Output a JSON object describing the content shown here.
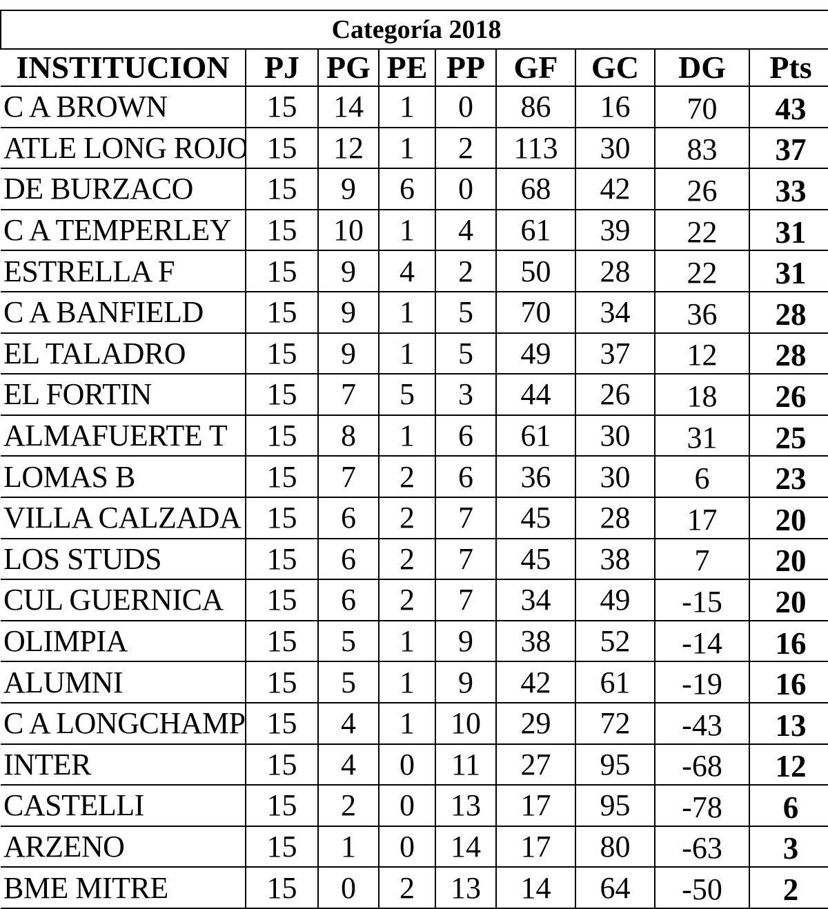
{
  "title": "Categoría  2018",
  "headers": {
    "institucion": "INSTITUCION",
    "pj": "PJ",
    "pg": "PG",
    "pe": "PE",
    "pp": "PP",
    "gf": "GF",
    "gc": "GC",
    "dg": "DG",
    "pts": "Pts"
  },
  "rows": [
    {
      "name": "C A BROWN",
      "pj": "15",
      "pg": "14",
      "pe": "1",
      "pp": "0",
      "gf": "86",
      "gc": "16",
      "dg": "70",
      "pts": "43"
    },
    {
      "name": "ATLE LONG ROJO",
      "pj": "15",
      "pg": "12",
      "pe": "1",
      "pp": "2",
      "gf": "113",
      "gc": "30",
      "dg": "83",
      "pts": "37"
    },
    {
      "name": "DE BURZACO",
      "pj": "15",
      "pg": "9",
      "pe": "6",
      "pp": "0",
      "gf": "68",
      "gc": "42",
      "dg": "26",
      "pts": "33"
    },
    {
      "name": "C A TEMPERLEY",
      "pj": "15",
      "pg": "10",
      "pe": "1",
      "pp": "4",
      "gf": "61",
      "gc": "39",
      "dg": "22",
      "pts": "31"
    },
    {
      "name": "ESTRELLA F",
      "pj": "15",
      "pg": "9",
      "pe": "4",
      "pp": "2",
      "gf": "50",
      "gc": "28",
      "dg": "22",
      "pts": "31"
    },
    {
      "name": "C A BANFIELD",
      "pj": "15",
      "pg": "9",
      "pe": "1",
      "pp": "5",
      "gf": "70",
      "gc": "34",
      "dg": "36",
      "pts": "28"
    },
    {
      "name": "EL TALADRO",
      "pj": "15",
      "pg": "9",
      "pe": "1",
      "pp": "5",
      "gf": "49",
      "gc": "37",
      "dg": "12",
      "pts": "28"
    },
    {
      "name": "EL FORTIN",
      "pj": "15",
      "pg": "7",
      "pe": "5",
      "pp": "3",
      "gf": "44",
      "gc": "26",
      "dg": "18",
      "pts": "26"
    },
    {
      "name": "ALMAFUERTE T",
      "pj": "15",
      "pg": "8",
      "pe": "1",
      "pp": "6",
      "gf": "61",
      "gc": "30",
      "dg": "31",
      "pts": "25"
    },
    {
      "name": "LOMAS B",
      "pj": "15",
      "pg": "7",
      "pe": "2",
      "pp": "6",
      "gf": "36",
      "gc": "30",
      "dg": "6",
      "pts": "23"
    },
    {
      "name": "VILLA CALZADA",
      "pj": "15",
      "pg": "6",
      "pe": "2",
      "pp": "7",
      "gf": "45",
      "gc": "28",
      "dg": "17",
      "pts": "20"
    },
    {
      "name": "LOS STUDS",
      "pj": "15",
      "pg": "6",
      "pe": "2",
      "pp": "7",
      "gf": "45",
      "gc": "38",
      "dg": "7",
      "pts": "20"
    },
    {
      "name": "CUL GUERNICA",
      "pj": "15",
      "pg": "6",
      "pe": "2",
      "pp": "7",
      "gf": "34",
      "gc": "49",
      "dg": "-15",
      "pts": "20"
    },
    {
      "name": "OLIMPIA",
      "pj": "15",
      "pg": "5",
      "pe": "1",
      "pp": "9",
      "gf": "38",
      "gc": "52",
      "dg": "-14",
      "pts": "16"
    },
    {
      "name": "ALUMNI",
      "pj": "15",
      "pg": "5",
      "pe": "1",
      "pp": "9",
      "gf": "42",
      "gc": "61",
      "dg": "-19",
      "pts": "16"
    },
    {
      "name": "C A LONGCHAMP",
      "pj": "15",
      "pg": "4",
      "pe": "1",
      "pp": "10",
      "gf": "29",
      "gc": "72",
      "dg": "-43",
      "pts": "13"
    },
    {
      "name": "INTER",
      "pj": "15",
      "pg": "4",
      "pe": "0",
      "pp": "11",
      "gf": "27",
      "gc": "95",
      "dg": "-68",
      "pts": "12"
    },
    {
      "name": "CASTELLI",
      "pj": "15",
      "pg": "2",
      "pe": "0",
      "pp": "13",
      "gf": "17",
      "gc": "95",
      "dg": "-78",
      "pts": "6"
    },
    {
      "name": "ARZENO",
      "pj": "15",
      "pg": "1",
      "pe": "0",
      "pp": "14",
      "gf": "17",
      "gc": "80",
      "dg": "-63",
      "pts": "3"
    },
    {
      "name": "BME MITRE",
      "pj": "15",
      "pg": "0",
      "pe": "2",
      "pp": "13",
      "gf": "14",
      "gc": "64",
      "dg": "-50",
      "pts": "2"
    }
  ]
}
